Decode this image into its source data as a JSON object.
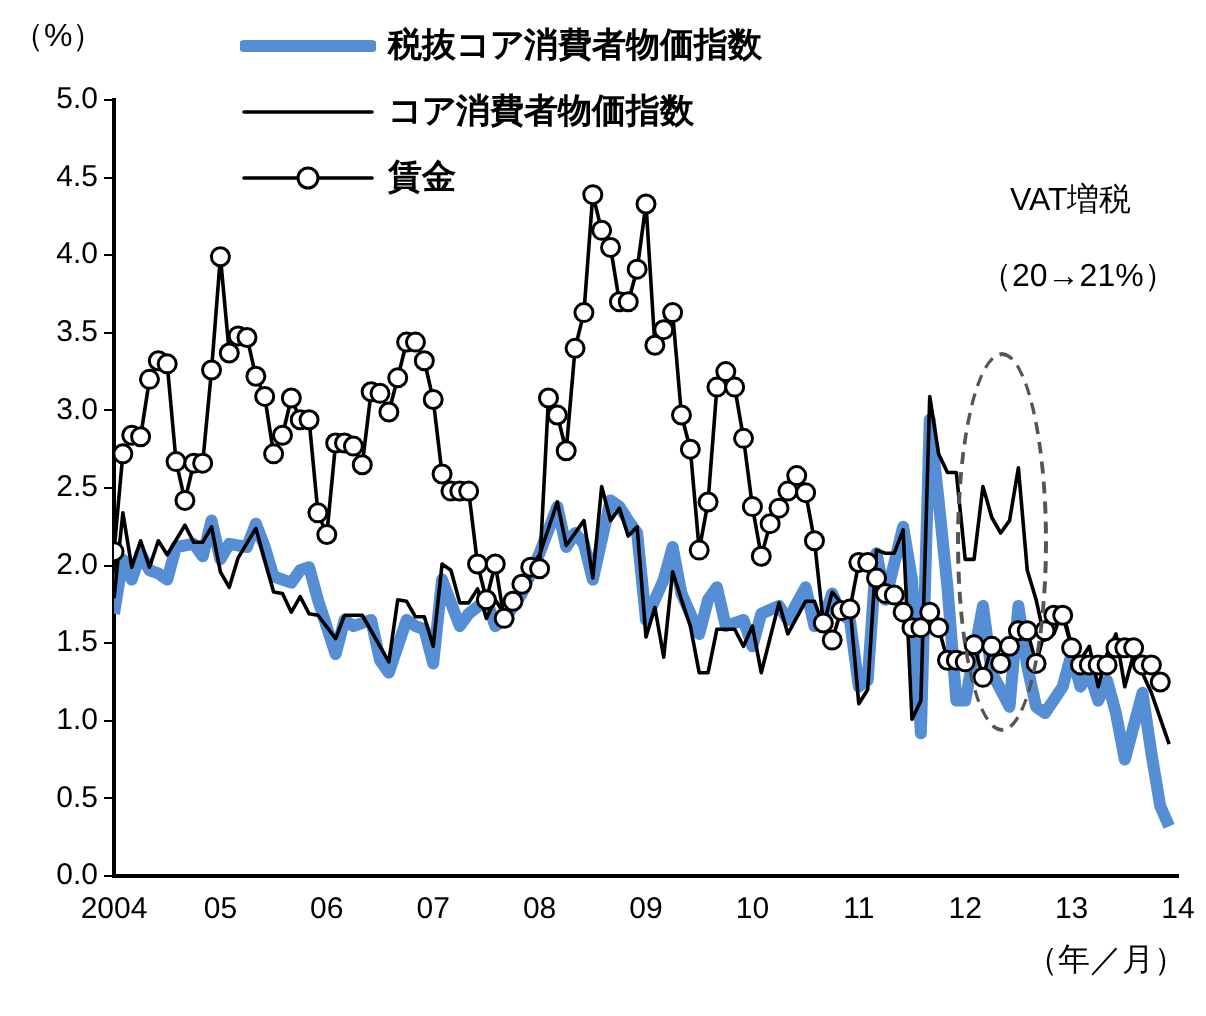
{
  "chart_data": {
    "type": "line",
    "ylabel": "（%）",
    "xlabel": "（年／月）",
    "legend": "top left",
    "annotations": [
      "VAT増税",
      "（20→21%）"
    ],
    "xlim": [
      "2004",
      "2014"
    ],
    "ylim": [
      0,
      5
    ],
    "xticks": [
      {
        "value": "2004",
        "label": "2004"
      },
      {
        "value": "2005",
        "label": "05"
      },
      {
        "value": "2006",
        "label": "06"
      },
      {
        "value": "2007",
        "label": "07"
      },
      {
        "value": "2008",
        "label": "08"
      },
      {
        "value": "2009",
        "label": "09"
      },
      {
        "value": "2010",
        "label": "10"
      },
      {
        "value": "2011",
        "label": "11"
      },
      {
        "value": "2012",
        "label": "12"
      },
      {
        "value": "2013",
        "label": "13"
      },
      {
        "value": "2014",
        "label": "14"
      }
    ],
    "yticks": [
      {
        "value": 0,
        "label": "0.0"
      },
      {
        "value": 0.5,
        "label": "0.5"
      },
      {
        "value": 1,
        "label": "1.0"
      },
      {
        "value": 1.5,
        "label": "1.5"
      },
      {
        "value": 2,
        "label": "2.0"
      },
      {
        "value": 2.5,
        "label": "2.5"
      },
      {
        "value": 3,
        "label": "3.0"
      },
      {
        "value": 3.5,
        "label": "3.5"
      },
      {
        "value": 4,
        "label": "4.0"
      },
      {
        "value": 4.5,
        "label": "4.5"
      },
      {
        "value": 5,
        "label": "5.0"
      }
    ],
    "x": [
      "2004-01",
      "2004-02",
      "2004-03",
      "2004-04",
      "2004-05",
      "2004-06",
      "2004-07",
      "2004-08",
      "2004-09",
      "2004-10",
      "2004-11",
      "2004-12",
      "2005-01",
      "2005-02",
      "2005-03",
      "2005-04",
      "2005-05",
      "2005-06",
      "2005-07",
      "2005-08",
      "2005-09",
      "2005-10",
      "2005-11",
      "2005-12",
      "2006-01",
      "2006-02",
      "2006-03",
      "2006-04",
      "2006-05",
      "2006-06",
      "2006-07",
      "2006-08",
      "2006-09",
      "2006-10",
      "2006-11",
      "2006-12",
      "2007-01",
      "2007-02",
      "2007-03",
      "2007-04",
      "2007-05",
      "2007-06",
      "2007-07",
      "2007-08",
      "2007-09",
      "2007-10",
      "2007-11",
      "2007-12",
      "2008-01",
      "2008-02",
      "2008-03",
      "2008-04",
      "2008-05",
      "2008-06",
      "2008-07",
      "2008-08",
      "2008-09",
      "2008-10",
      "2008-11",
      "2008-12",
      "2009-01",
      "2009-02",
      "2009-03",
      "2009-04",
      "2009-05",
      "2009-06",
      "2009-07",
      "2009-08",
      "2009-09",
      "2009-10",
      "2009-11",
      "2009-12",
      "2010-01",
      "2010-02",
      "2010-03",
      "2010-04",
      "2010-05",
      "2010-06",
      "2010-07",
      "2010-08",
      "2010-09",
      "2010-10",
      "2010-11",
      "2010-12",
      "2011-01",
      "2011-02",
      "2011-03",
      "2011-04",
      "2011-05",
      "2011-06",
      "2011-07",
      "2011-08",
      "2011-09",
      "2011-10",
      "2011-11",
      "2011-12",
      "2012-01",
      "2012-02",
      "2012-03",
      "2012-04",
      "2012-05",
      "2012-06",
      "2012-07",
      "2012-08",
      "2012-09",
      "2012-10",
      "2012-11",
      "2012-12",
      "2013-01",
      "2013-02",
      "2013-03",
      "2013-04",
      "2013-05",
      "2013-06",
      "2013-07",
      "2013-08",
      "2013-09",
      "2013-10",
      "2013-11"
    ],
    "series": [
      {
        "name": "税抜コア消費者物価指数",
        "color": "#558ed5",
        "marker": "none",
        "x": [
          "2004-01",
          "2004-02",
          "2004-03",
          "2004-04",
          "2004-05",
          "2004-06",
          "2004-07",
          "2004-08",
          "2004-10",
          "2004-11",
          "2004-12",
          "2005-01",
          "2005-02",
          "2005-04",
          "2005-05",
          "2005-06",
          "2005-07",
          "2005-09",
          "2005-10",
          "2005-11",
          "2005-12",
          "2006-02",
          "2006-03",
          "2006-04",
          "2006-06",
          "2006-07",
          "2006-08",
          "2006-10",
          "2006-11",
          "2006-12",
          "2007-01",
          "2007-02",
          "2007-04",
          "2007-05",
          "2007-07",
          "2007-08",
          "2007-09",
          "2007-11",
          "2008-01",
          "2008-03",
          "2008-04",
          "2008-05",
          "2008-06",
          "2008-07",
          "2008-09",
          "2008-10",
          "2008-11",
          "2008-12",
          "2009-01",
          "2009-03",
          "2009-04",
          "2009-05",
          "2009-07",
          "2009-08",
          "2009-09",
          "2009-10",
          "2009-12",
          "2010-01",
          "2010-02",
          "2010-04",
          "2010-05",
          "2010-07",
          "2010-08",
          "2010-09",
          "2010-10",
          "2010-11",
          "2010-12",
          "2011-01",
          "2011-02",
          "2011-03",
          "2011-04",
          "2011-06",
          "2011-07",
          "2011-08",
          "2011-09",
          "2011-10",
          "2011-11",
          "2011-12",
          "2012-01",
          "2012-02",
          "2012-03",
          "2012-04",
          "2012-06",
          "2012-07",
          "2012-08",
          "2012-09",
          "2012-10",
          "2012-12",
          "2013-01",
          "2013-02",
          "2013-03",
          "2013-04",
          "2013-05",
          "2013-06",
          "2013-07",
          "2013-09",
          "2013-10",
          "2013-11",
          "2013-12"
        ],
        "values": [
          1.69,
          2.04,
          1.91,
          2.08,
          1.97,
          1.95,
          1.91,
          2.12,
          2.14,
          2.06,
          2.29,
          2.04,
          2.14,
          2.12,
          2.27,
          2.12,
          1.93,
          1.89,
          1.97,
          1.99,
          1.78,
          1.43,
          1.65,
          1.61,
          1.65,
          1.39,
          1.31,
          1.65,
          1.61,
          1.59,
          1.37,
          1.91,
          1.61,
          1.69,
          1.78,
          1.61,
          1.65,
          1.82,
          2.08,
          2.38,
          2.12,
          2.21,
          2.14,
          1.91,
          2.42,
          2.38,
          2.29,
          2.21,
          1.65,
          1.91,
          2.12,
          1.82,
          1.56,
          1.78,
          1.86,
          1.61,
          1.65,
          1.48,
          1.69,
          1.74,
          1.65,
          1.86,
          1.61,
          1.65,
          1.82,
          1.69,
          1.65,
          1.22,
          1.26,
          2.08,
          1.78,
          2.25,
          1.91,
          0.92,
          2.94,
          2.42,
          1.86,
          1.13,
          1.13,
          1.43,
          1.74,
          1.31,
          1.09,
          1.74,
          1.35,
          1.09,
          1.05,
          1.22,
          1.43,
          1.22,
          1.31,
          1.13,
          1.26,
          1.05,
          0.75,
          1.18,
          0.79,
          0.45,
          0.32
        ]
      },
      {
        "name": "コア消費者物価指数",
        "color": "#000000",
        "marker": "none",
        "x": [
          "2004-01",
          "2004-02",
          "2004-03",
          "2004-04",
          "2004-05",
          "2004-06",
          "2004-07",
          "2004-09",
          "2004-10",
          "2004-11",
          "2004-12",
          "2005-01",
          "2005-02",
          "2005-03",
          "2005-05",
          "2005-07",
          "2005-08",
          "2005-09",
          "2005-10",
          "2005-11",
          "2005-12",
          "2006-02",
          "2006-03",
          "2006-05",
          "2006-08",
          "2006-09",
          "2006-10",
          "2006-11",
          "2006-12",
          "2007-01",
          "2007-02",
          "2007-03",
          "2007-04",
          "2007-05",
          "2007-06",
          "2007-07",
          "2007-08",
          "2007-09",
          "2007-10",
          "2007-11",
          "2008-01",
          "2008-03",
          "2008-04",
          "2008-06",
          "2008-07",
          "2008-08",
          "2008-09",
          "2008-10",
          "2008-11",
          "2008-12",
          "2009-01",
          "2009-02",
          "2009-03",
          "2009-04",
          "2009-05",
          "2009-06",
          "2009-07",
          "2009-08",
          "2009-09",
          "2009-11",
          "2009-12",
          "2010-01",
          "2010-02",
          "2010-04",
          "2010-05",
          "2010-07",
          "2010-08",
          "2010-09",
          "2010-10",
          "2010-11",
          "2010-12",
          "2011-01",
          "2011-02",
          "2011-03",
          "2011-04",
          "2011-05",
          "2011-06",
          "2011-07",
          "2011-08",
          "2011-09",
          "2011-10",
          "2011-11",
          "2011-12",
          "2012-01",
          "2012-02",
          "2012-03",
          "2012-04",
          "2012-05",
          "2012-06",
          "2012-07",
          "2012-08",
          "2012-09",
          "2012-10",
          "2012-11",
          "2012-12",
          "2013-01",
          "2013-02",
          "2013-03",
          "2013-04",
          "2013-05",
          "2013-06",
          "2013-07",
          "2013-08",
          "2013-10",
          "2013-12"
        ],
        "values": [
          1.79,
          2.34,
          1.99,
          2.16,
          1.99,
          2.16,
          2.07,
          2.26,
          2.15,
          2.15,
          2.25,
          1.96,
          1.86,
          2.05,
          2.24,
          1.83,
          1.82,
          1.7,
          1.8,
          1.69,
          1.68,
          1.53,
          1.68,
          1.68,
          1.38,
          1.78,
          1.77,
          1.67,
          1.67,
          1.48,
          2.01,
          1.97,
          1.76,
          1.76,
          1.85,
          1.66,
          1.78,
          1.69,
          1.78,
          1.91,
          2.07,
          2.41,
          2.13,
          2.29,
          1.92,
          2.51,
          2.29,
          2.37,
          2.19,
          2.25,
          1.54,
          1.73,
          1.41,
          1.96,
          1.78,
          1.61,
          1.31,
          1.31,
          1.59,
          1.59,
          1.48,
          1.61,
          1.31,
          1.76,
          1.56,
          1.77,
          1.77,
          1.61,
          1.83,
          1.76,
          1.74,
          1.11,
          1.2,
          2.1,
          2.08,
          2.08,
          2.23,
          1.01,
          1.13,
          3.09,
          2.72,
          2.6,
          2.6,
          2.04,
          2.04,
          2.51,
          2.31,
          2.21,
          2.29,
          2.63,
          1.97,
          1.78,
          1.52,
          1.56,
          1.71,
          1.48,
          1.39,
          1.48,
          1.22,
          1.43,
          1.56,
          1.22,
          1.43,
          1.18,
          0.85
        ]
      },
      {
        "name": "賃金",
        "color": "#000000",
        "marker": "circle",
        "values": [
          2.09,
          2.72,
          2.84,
          2.83,
          3.2,
          3.32,
          3.3,
          2.67,
          2.42,
          2.66,
          2.66,
          3.26,
          3.99,
          3.37,
          3.48,
          3.47,
          3.22,
          3.09,
          2.72,
          2.84,
          3.08,
          2.94,
          2.94,
          2.34,
          2.2,
          2.79,
          2.79,
          2.77,
          2.65,
          3.12,
          3.11,
          2.99,
          3.21,
          3.44,
          3.44,
          3.32,
          3.07,
          2.59,
          2.48,
          2.48,
          2.48,
          2.01,
          1.78,
          2.01,
          1.66,
          1.77,
          1.88,
          1.99,
          1.98,
          3.08,
          2.97,
          2.74,
          3.4,
          3.63,
          4.39,
          4.16,
          4.05,
          3.7,
          3.7,
          3.91,
          4.33,
          3.42,
          3.52,
          3.63,
          2.97,
          2.75,
          2.1,
          2.41,
          3.15,
          3.25,
          3.15,
          2.82,
          2.38,
          2.06,
          2.27,
          2.37,
          2.48,
          2.58,
          2.47,
          2.16,
          1.63,
          1.52,
          1.71,
          1.72,
          2.02,
          2.02,
          1.92,
          1.82,
          1.81,
          1.7,
          1.6,
          1.6,
          1.7,
          1.6,
          1.39,
          1.39,
          1.38,
          1.49,
          1.28,
          1.48,
          1.37,
          1.48,
          1.58,
          1.58,
          1.37,
          1.58,
          1.68,
          1.68,
          1.47,
          1.36,
          1.36,
          1.36,
          1.36,
          1.47,
          1.47,
          1.47,
          1.36,
          1.36,
          1.25
        ]
      }
    ]
  }
}
